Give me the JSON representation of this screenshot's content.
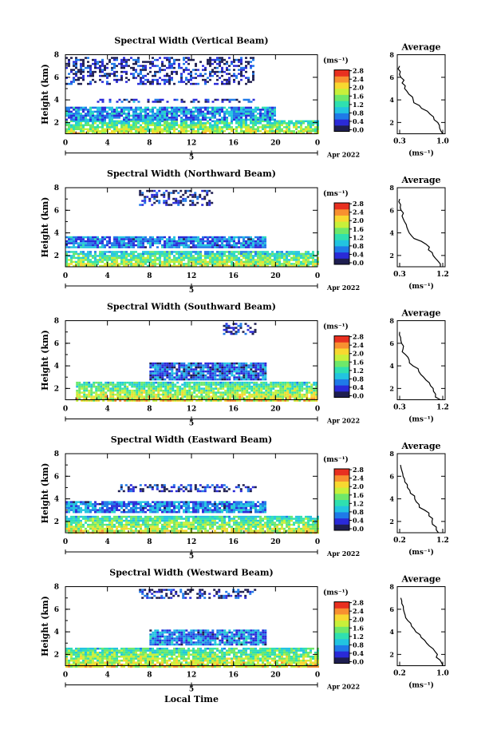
{
  "figure": {
    "xlabel": "Local Time",
    "date_label": "Apr 2022",
    "day_label": "5",
    "colorbar_unit": "(ms⁻¹)",
    "colorbar_ticks": [
      "0.0",
      "0.4",
      "0.8",
      "1.2",
      "1.6",
      "2.0",
      "2.4",
      "2.8"
    ],
    "colorbar_colors": [
      "#1e1e50",
      "#2a2ad8",
      "#1f7ae8",
      "#22c4e0",
      "#2fe0b0",
      "#6ee86a",
      "#c8f03a",
      "#f8d830",
      "#f89030",
      "#e83020"
    ],
    "accent_colors": {
      "axis": "#000000",
      "low": "#1f3cc8",
      "mid": "#2fd8c8",
      "high": "#e83a20"
    }
  },
  "chart_data": [
    {
      "type": "heatmap",
      "title": "Spectral Width (Vertical Beam)",
      "xlabel": "",
      "ylabel": "Height (km)",
      "xlim": [
        0,
        24
      ],
      "ylim": [
        1,
        8
      ],
      "xticks": [
        "0",
        "4",
        "8",
        "12",
        "16",
        "20",
        "0"
      ],
      "yticks": [
        "2",
        "4",
        "6",
        "8"
      ],
      "colorbar": {
        "label": "(ms⁻¹)",
        "range": [
          0.0,
          2.8
        ]
      },
      "layers": [
        {
          "x": [
            0,
            24
          ],
          "y": [
            1.0,
            2.2
          ],
          "value": 1.2
        },
        {
          "x": [
            0,
            20
          ],
          "y": [
            2.2,
            3.4
          ],
          "value": 0.8
        },
        {
          "x": [
            3,
            18
          ],
          "y": [
            3.8,
            4.1
          ],
          "value": 0.4
        },
        {
          "x": [
            0,
            18
          ],
          "y": [
            5.5,
            7.8
          ],
          "value": 0.3
        }
      ],
      "profile": {
        "title": "Average",
        "xlabel": "(ms⁻¹)",
        "xticks": [
          "0.3",
          "1.0"
        ],
        "xlim": [
          0.3,
          1.0
        ],
        "ylim": [
          1,
          8
        ],
        "yticks": [
          "2",
          "4",
          "6",
          "8"
        ],
        "height": [
          1.0,
          1.5,
          2.0,
          2.5,
          3.0,
          3.5,
          4.0,
          4.5,
          5.0,
          5.5,
          6.0,
          6.5,
          7.0
        ],
        "width": [
          1.0,
          0.95,
          0.92,
          0.85,
          0.75,
          0.62,
          0.52,
          0.45,
          0.38,
          0.34,
          0.32,
          0.31,
          0.3
        ]
      }
    },
    {
      "type": "heatmap",
      "title": "Spectral Width (Northward Beam)",
      "xlabel": "",
      "ylabel": "Height (km)",
      "xlim": [
        0,
        24
      ],
      "ylim": [
        1,
        8
      ],
      "xticks": [
        "0",
        "4",
        "8",
        "12",
        "16",
        "20",
        "0"
      ],
      "yticks": [
        "2",
        "4",
        "6",
        "8"
      ],
      "colorbar": {
        "label": "(ms⁻¹)",
        "range": [
          0.0,
          2.8
        ]
      },
      "layers": [
        {
          "x": [
            0,
            24
          ],
          "y": [
            1.0,
            2.4
          ],
          "value": 1.1
        },
        {
          "x": [
            0,
            19
          ],
          "y": [
            2.8,
            3.7
          ],
          "value": 0.7
        },
        {
          "x": [
            7,
            14
          ],
          "y": [
            6.5,
            7.8
          ],
          "value": 0.3
        }
      ],
      "profile": {
        "title": "Average",
        "xlabel": "(ms⁻¹)",
        "xticks": [
          "0.3",
          "1.2"
        ],
        "xlim": [
          0.3,
          1.2
        ],
        "ylim": [
          1,
          8
        ],
        "yticks": [
          "2",
          "4",
          "6",
          "8"
        ],
        "height": [
          1.0,
          1.5,
          2.0,
          2.5,
          3.0,
          3.5,
          4.0,
          4.5,
          5.0,
          5.5,
          6.0,
          6.5,
          7.0
        ],
        "width": [
          1.15,
          1.1,
          1.0,
          0.9,
          0.85,
          0.6,
          0.5,
          0.45,
          0.4,
          0.35,
          0.33,
          0.32,
          0.3
        ]
      }
    },
    {
      "type": "heatmap",
      "title": "Spectral Width (Southward Beam)",
      "xlabel": "",
      "ylabel": "Height (km)",
      "xlim": [
        0,
        24
      ],
      "ylim": [
        1,
        8
      ],
      "xticks": [
        "0",
        "4",
        "8",
        "12",
        "16",
        "20",
        "0"
      ],
      "yticks": [
        "2",
        "4",
        "6",
        "8"
      ],
      "colorbar": {
        "label": "(ms⁻¹)",
        "range": [
          0.0,
          2.8
        ]
      },
      "layers": [
        {
          "x": [
            1,
            24
          ],
          "y": [
            1.0,
            2.6
          ],
          "value": 1.2
        },
        {
          "x": [
            8,
            19
          ],
          "y": [
            2.8,
            4.3
          ],
          "value": 0.6
        },
        {
          "x": [
            15,
            18
          ],
          "y": [
            6.8,
            7.8
          ],
          "value": 0.3
        }
      ],
      "profile": {
        "title": "Average",
        "xlabel": "(ms⁻¹)",
        "xticks": [
          "0.3",
          "1.2"
        ],
        "xlim": [
          0.3,
          1.2
        ],
        "ylim": [
          1,
          8
        ],
        "yticks": [
          "2",
          "4",
          "6",
          "8"
        ],
        "height": [
          1.0,
          1.5,
          2.0,
          2.5,
          3.0,
          3.5,
          4.0,
          4.5,
          5.0,
          5.5,
          6.0,
          6.5,
          7.0
        ],
        "width": [
          1.15,
          1.05,
          1.0,
          0.92,
          0.8,
          0.7,
          0.58,
          0.5,
          0.42,
          0.37,
          0.34,
          0.32,
          0.3
        ]
      }
    },
    {
      "type": "heatmap",
      "title": "Spectral Width (Eastward Beam)",
      "xlabel": "",
      "ylabel": "Height (km)",
      "xlim": [
        0,
        24
      ],
      "ylim": [
        1,
        8
      ],
      "xticks": [
        "0",
        "4",
        "8",
        "12",
        "16",
        "20",
        "0"
      ],
      "yticks": [
        "2",
        "4",
        "6",
        "8"
      ],
      "colorbar": {
        "label": "(ms⁻¹)",
        "range": [
          0.0,
          2.8
        ]
      },
      "layers": [
        {
          "x": [
            0,
            24
          ],
          "y": [
            1.0,
            2.5
          ],
          "value": 1.2
        },
        {
          "x": [
            0,
            19
          ],
          "y": [
            2.8,
            3.8
          ],
          "value": 0.7
        },
        {
          "x": [
            5,
            18
          ],
          "y": [
            4.6,
            5.3
          ],
          "value": 0.3
        }
      ],
      "profile": {
        "title": "Average",
        "xlabel": "(ms⁻¹)",
        "xticks": [
          "0.2",
          "1.2"
        ],
        "xlim": [
          0.2,
          1.2
        ],
        "ylim": [
          1,
          8
        ],
        "yticks": [
          "2",
          "4",
          "6",
          "8"
        ],
        "height": [
          1.0,
          1.5,
          2.0,
          2.5,
          3.0,
          3.5,
          4.0,
          4.5,
          5.0,
          5.5,
          6.0,
          6.5,
          7.0
        ],
        "width": [
          1.1,
          1.05,
          0.95,
          0.88,
          0.78,
          0.65,
          0.55,
          0.45,
          0.38,
          0.32,
          0.28,
          0.25,
          0.22
        ]
      }
    },
    {
      "type": "heatmap",
      "title": "Spectral Width (Westward Beam)",
      "xlabel": "Local Time",
      "ylabel": "Height (km)",
      "xlim": [
        0,
        24
      ],
      "ylim": [
        1,
        8
      ],
      "xticks": [
        "0",
        "4",
        "8",
        "12",
        "16",
        "20",
        "0"
      ],
      "yticks": [
        "2",
        "4",
        "6",
        "8"
      ],
      "colorbar": {
        "label": "(ms⁻¹)",
        "range": [
          0.0,
          2.8
        ]
      },
      "layers": [
        {
          "x": [
            0,
            24
          ],
          "y": [
            1.0,
            2.6
          ],
          "value": 1.2
        },
        {
          "x": [
            8,
            19
          ],
          "y": [
            2.8,
            4.2
          ],
          "value": 0.7
        },
        {
          "x": [
            7,
            18
          ],
          "y": [
            7.0,
            7.8
          ],
          "value": 0.3
        }
      ],
      "profile": {
        "title": "Average",
        "xlabel": "(ms⁻¹)",
        "xticks": [
          "0.2",
          "1.0"
        ],
        "xlim": [
          0.2,
          1.0
        ],
        "ylim": [
          1,
          8
        ],
        "yticks": [
          "2",
          "4",
          "6",
          "8"
        ],
        "height": [
          1.0,
          1.5,
          2.0,
          2.5,
          3.0,
          3.5,
          4.0,
          4.5,
          5.0,
          5.5,
          6.0,
          6.5,
          7.0
        ],
        "width": [
          1.0,
          0.95,
          0.9,
          0.82,
          0.7,
          0.6,
          0.5,
          0.42,
          0.35,
          0.3,
          0.27,
          0.24,
          0.22
        ]
      }
    }
  ]
}
